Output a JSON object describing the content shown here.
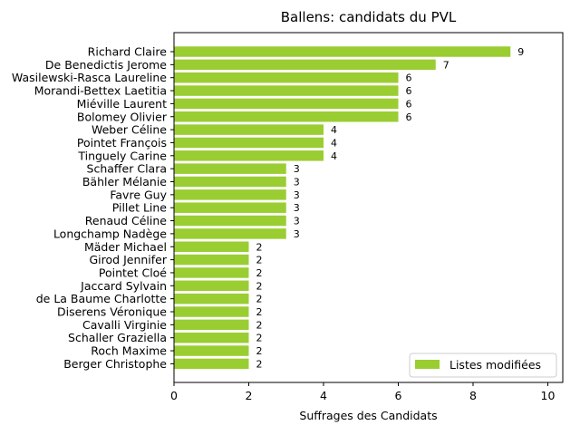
{
  "chart_data": {
    "type": "bar",
    "orientation": "horizontal",
    "title": "Ballens: candidats du PVL",
    "xlabel": "Suffrages des Candidats",
    "ylabel": "",
    "xlim": [
      0,
      10.4
    ],
    "xticks": [
      0,
      2,
      4,
      6,
      8,
      10
    ],
    "grid": false,
    "legend_position": "lower-right",
    "categories": [
      "Richard Claire",
      "De Benedictis Jerome",
      "Wasilewski-Rasca Laureline",
      "Morandi-Bettex Laetitia",
      "Miéville Laurent",
      "Bolomey Olivier",
      "Weber Céline",
      "Pointet François",
      "Tinguely Carine",
      "Schaffer Clara",
      "Bähler Mélanie",
      "Favre Guy",
      "Pillet Line",
      "Renaud Céline",
      "Longchamp Nadège",
      "Mäder Michael",
      "Girod Jennifer",
      "Pointet Cloé",
      "Jaccard Sylvain",
      "de La Baume Charlotte",
      "Diserens Véronique",
      "Cavalli Virginie",
      "Schaller Graziella",
      "Roch Maxime",
      "Berger Christophe"
    ],
    "series": [
      {
        "name": "Listes modifiées",
        "color": "#9acd32",
        "values": [
          9,
          7,
          6,
          6,
          6,
          6,
          4,
          4,
          4,
          3,
          3,
          3,
          3,
          3,
          3,
          2,
          2,
          2,
          2,
          2,
          2,
          2,
          2,
          2,
          2
        ]
      }
    ]
  }
}
